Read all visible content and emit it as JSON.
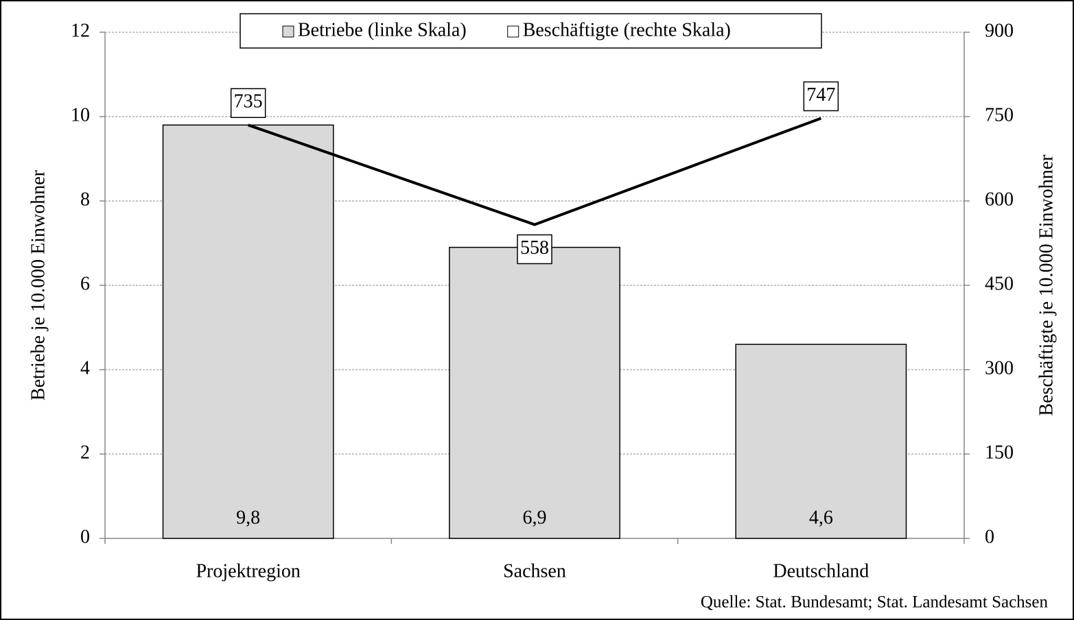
{
  "chart_data": {
    "type": "bar",
    "categories": [
      "Projektregion",
      "Sachsen",
      "Deutschland"
    ],
    "series": [
      {
        "name": "Betriebe (linke Skala)",
        "type": "bar",
        "color": "#d9d9d9",
        "values": [
          9.8,
          6.9,
          4.6
        ],
        "value_labels": [
          "9,8",
          "6,9",
          "4,6"
        ]
      },
      {
        "name": "Beschäftigte (rechte Skala)",
        "type": "line",
        "axis": "y2",
        "color": "#000000",
        "values": [
          735,
          558,
          747
        ]
      }
    ],
    "y_label": "Betriebe je 10.000 Einwohner",
    "y2_label": "Beschäftigte je 10.000 Einwohner",
    "ylim": [
      0,
      12
    ],
    "yticks": [
      0,
      2,
      4,
      6,
      8,
      10,
      12
    ],
    "y2lim": [
      0,
      900
    ],
    "y2ticks": [
      0,
      150,
      300,
      450,
      600,
      750,
      900
    ],
    "grid": true,
    "legend": "top",
    "source": "Quelle: Stat. Bundesamt; Stat. Landesamt Sachsen"
  }
}
